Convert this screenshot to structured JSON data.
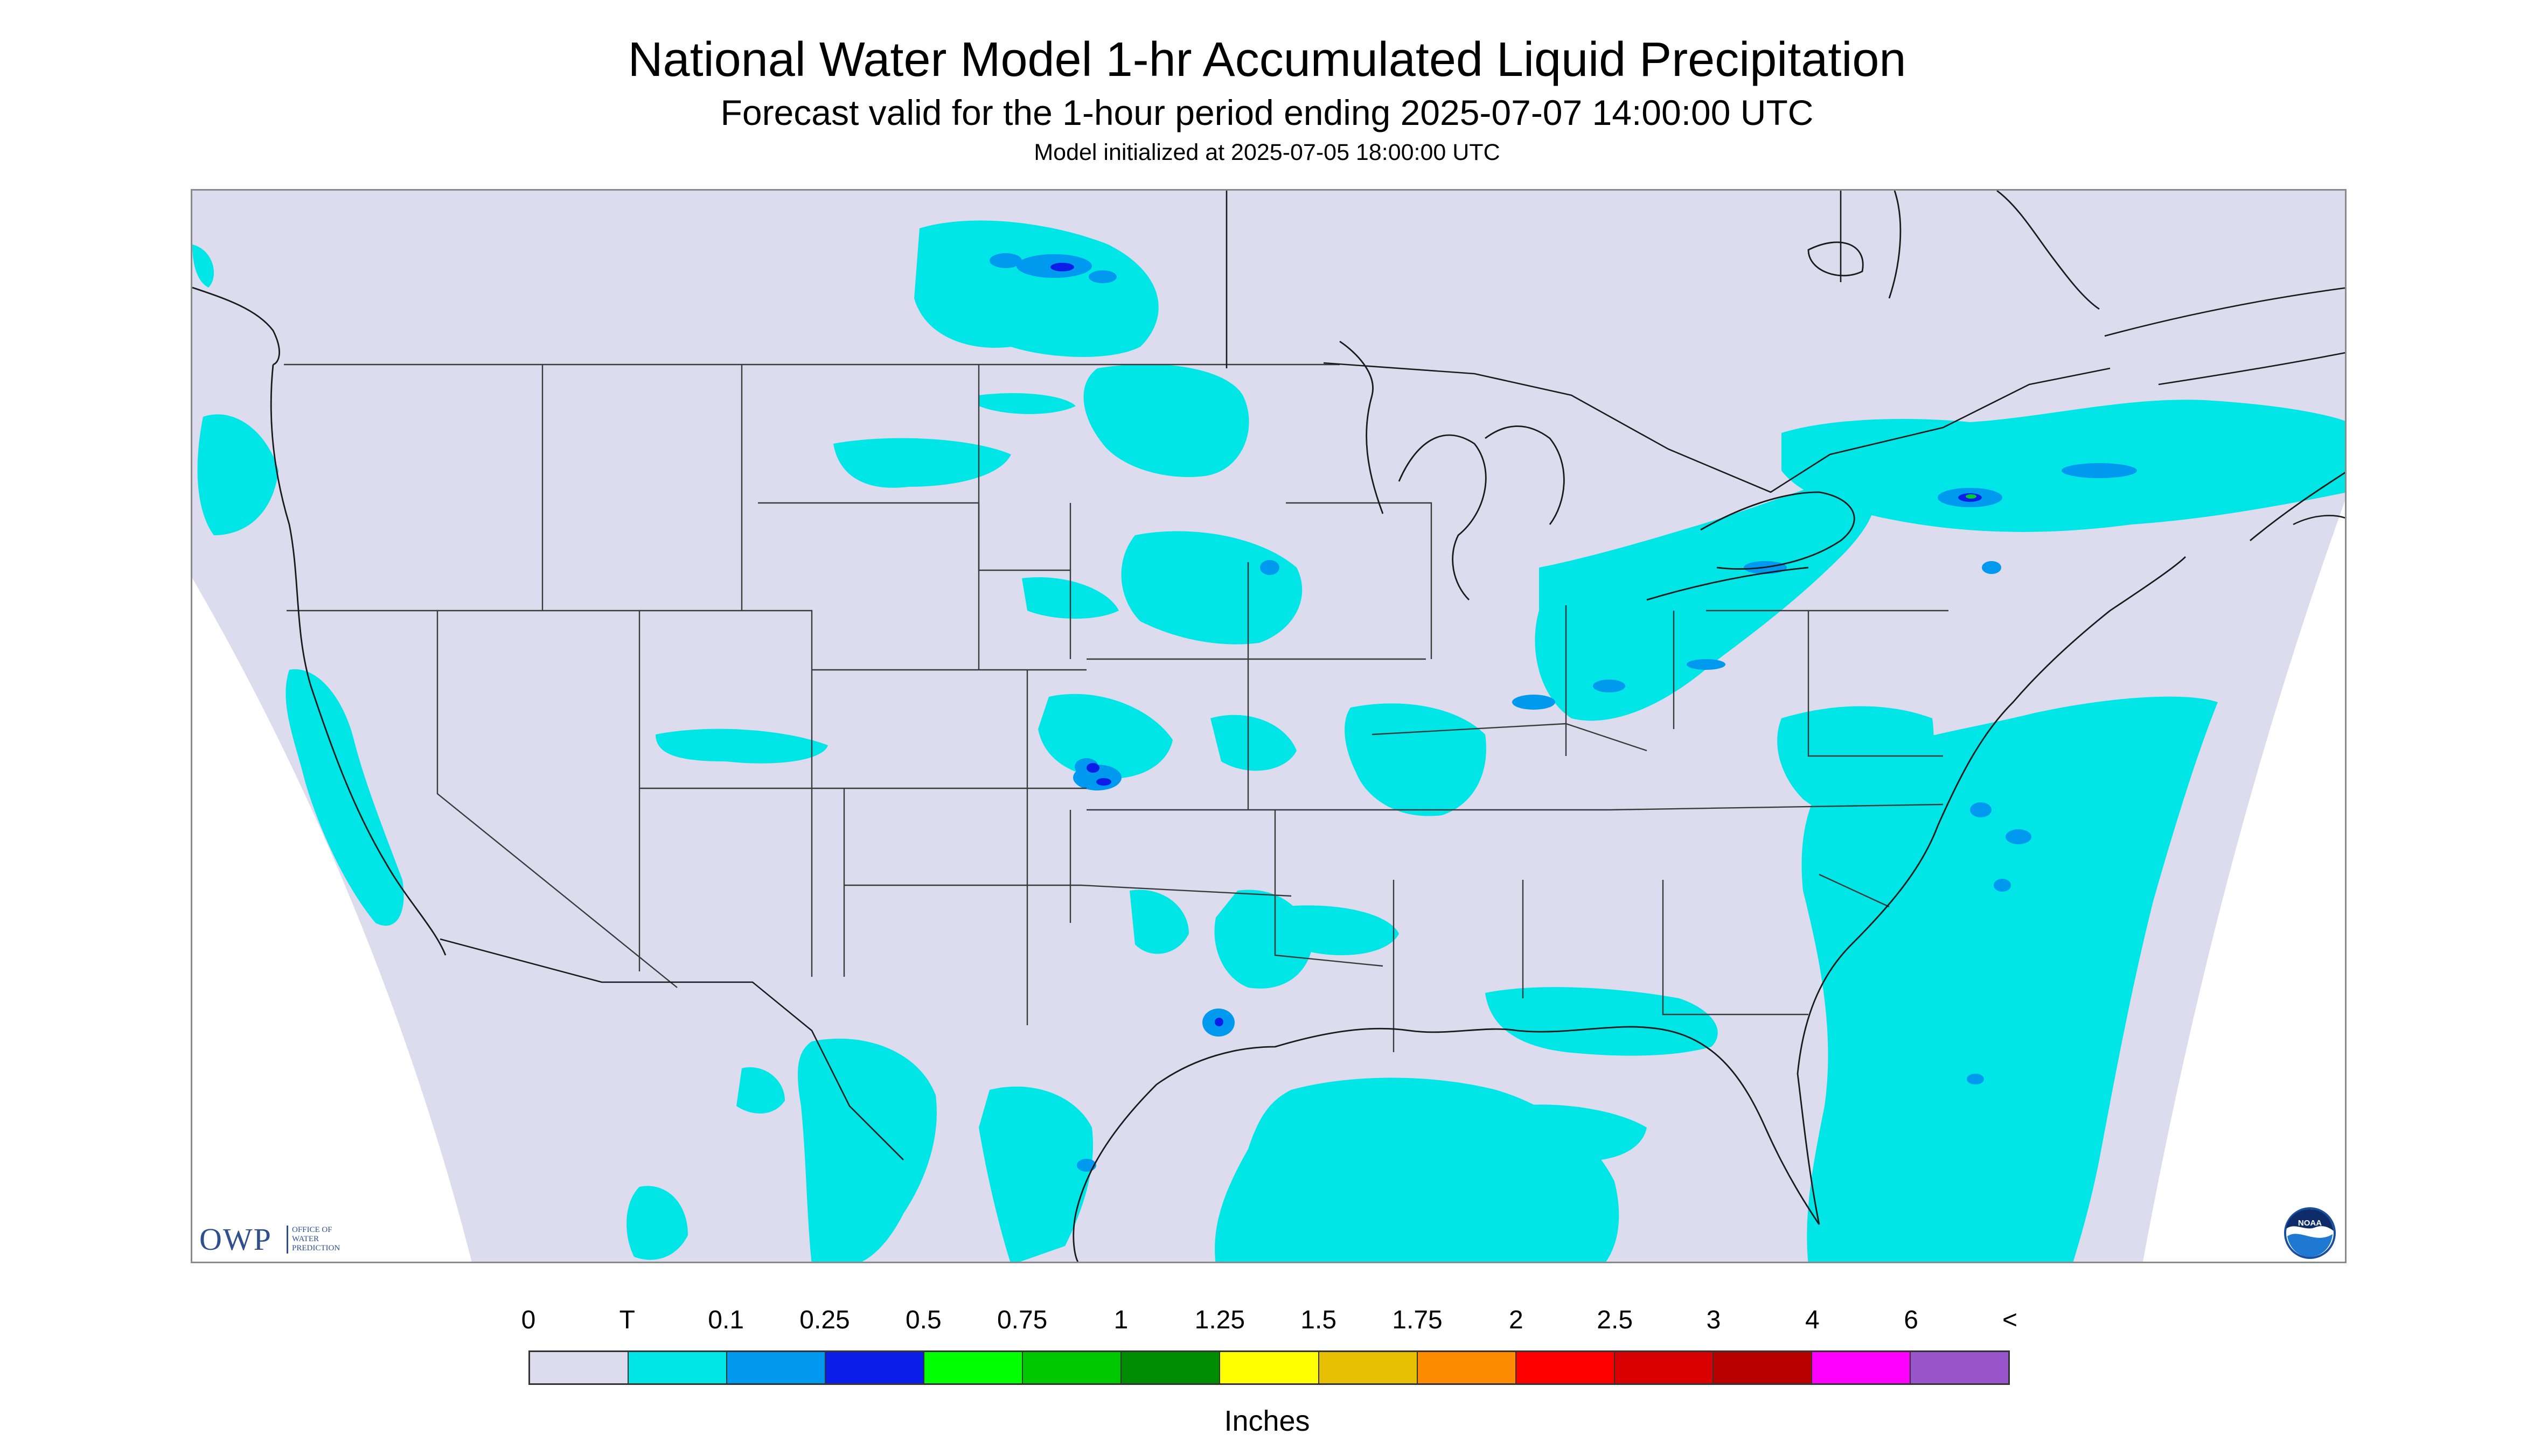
{
  "header": {
    "title": "National Water Model 1-hr Accumulated Liquid Precipitation",
    "subtitle": "Forecast valid for the 1-hour period ending 2025-07-07 14:00:00 UTC",
    "init": "Model initialized at 2025-07-05 18:00:00 UTC"
  },
  "map": {
    "background_color": "#dcdcee",
    "outside_color": "#ffffff",
    "precip_colors": {
      "trace": "#00e5e5",
      "light": "#0099f0",
      "heavy": "#0a1ee8",
      "green": "#00cc33"
    }
  },
  "logos": {
    "owp": {
      "text": "OWP",
      "line1": "OFFICE OF",
      "line2": "WATER",
      "line3": "PREDICTION"
    },
    "noaa": {
      "text": "NOAA"
    }
  },
  "legend": {
    "labels": [
      "0",
      "T",
      "0.1",
      "0.25",
      "0.5",
      "0.75",
      "1",
      "1.25",
      "1.5",
      "1.75",
      "2",
      "2.5",
      "3",
      "4",
      "6",
      "<"
    ],
    "colors": [
      "#dcdcee",
      "#00e5e5",
      "#0099f0",
      "#0a1ee8",
      "#00ff00",
      "#00c800",
      "#008c00",
      "#ffff00",
      "#e6c000",
      "#ff8c00",
      "#ff0000",
      "#d80000",
      "#b80000",
      "#ff00ff",
      "#9955cc"
    ],
    "units": "Inches"
  }
}
